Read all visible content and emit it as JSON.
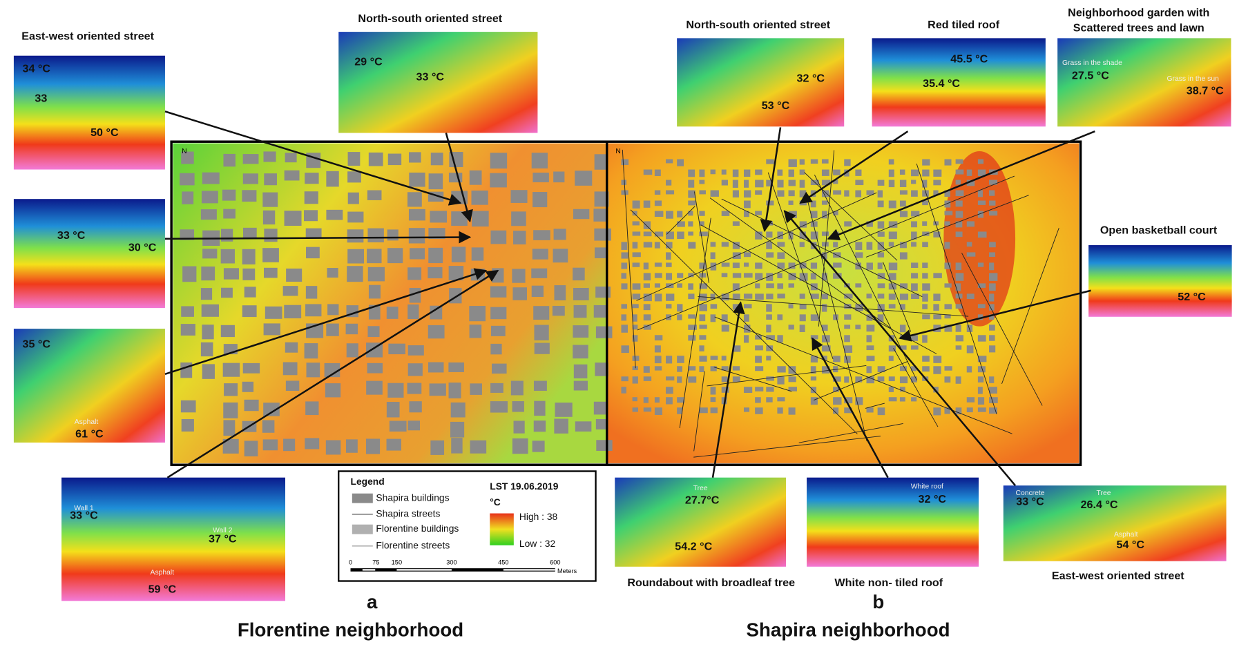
{
  "panels": [
    {
      "letter": "a",
      "title": "Florentine neighborhood"
    },
    {
      "letter": "b",
      "title": "Shapira neighborhood"
    }
  ],
  "photos": [
    {
      "caption": "East-west oriented street",
      "labels": [
        "34 °C",
        "33",
        "50 °C"
      ]
    },
    {
      "caption": "North-south oriented street",
      "labels": [
        "29 °C",
        "33 °C"
      ]
    },
    {
      "labels": [
        "33 °C",
        "30 °C"
      ]
    },
    {
      "labels": [
        "35 °C",
        "Asphalt",
        "61 °C"
      ]
    },
    {
      "labels": [
        "Wall 1",
        "33 °C",
        "Wall 2",
        "37 °C",
        "Asphalt",
        "59 °C"
      ]
    },
    {
      "caption": "North-south oriented street",
      "labels": [
        "32 °C",
        "53 °C"
      ]
    },
    {
      "caption": "Red tiled roof",
      "labels": [
        "45.5 °C",
        "35.4 °C"
      ]
    },
    {
      "caption": "Neighborhood garden with Scattered trees and lawn",
      "labels": [
        "Grass in the shade",
        "27.5 °C",
        "Grass in the sun",
        "38.7 °C"
      ]
    },
    {
      "caption": "Open basketball court",
      "labels": [
        "52 °C"
      ]
    },
    {
      "caption": "Roundabout with broadleaf tree",
      "labels": [
        "Tree",
        "27.7°C",
        "54.2 °C"
      ]
    },
    {
      "caption": "White non- tiled roof",
      "labels": [
        "White roof",
        "32 °C"
      ]
    },
    {
      "caption": "East-west oriented street",
      "labels": [
        "Concrete",
        "33 °C",
        "Tree",
        "26.4 °C",
        "Asphalt",
        "54 °C"
      ]
    }
  ],
  "legend": {
    "title": "Legend",
    "items": [
      "Shapira buildings",
      "Shapira streets",
      "Florentine buildings",
      "Florentine streets"
    ],
    "lst_title": "LST 19.06.2019",
    "unit": "°C",
    "high": "High : 38",
    "low": "Low : 32"
  },
  "scale_bar": {
    "ticks": [
      "0",
      "75",
      "150",
      "300",
      "450",
      "600"
    ],
    "unit": "Meters"
  }
}
